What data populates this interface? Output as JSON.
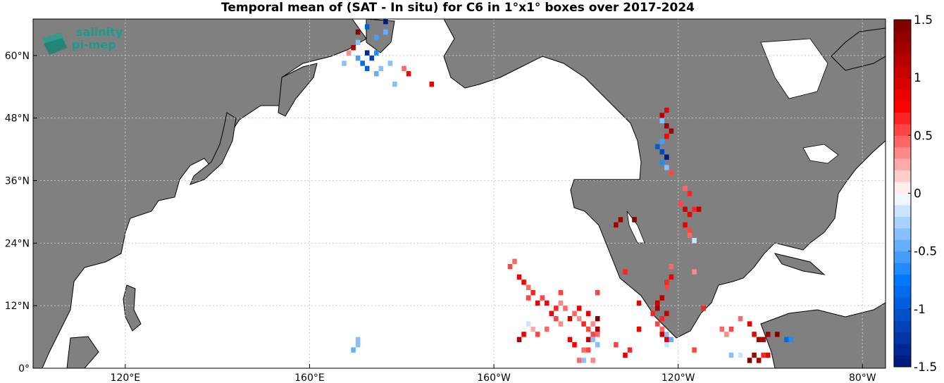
{
  "title": "Temporal mean of (SAT - In situ) for C6 in 1°x1° boxes over 2017-2024",
  "logo": {
    "line1": "salinity",
    "line2": "pi-mep"
  },
  "colors": {
    "land": "#808080",
    "ocean": "#ffffff",
    "grid": "#c8c8c8"
  },
  "chart_data": {
    "type": "heatmap",
    "title": "Temporal mean of (SAT - In situ) for C6 in 1°x1° boxes over 2017-2024",
    "projection": "equirectangular",
    "xlim_lon_east": [
      100,
      285
    ],
    "ylim_lat": [
      0,
      67
    ],
    "x_ticks": [
      {
        "lon": 120,
        "label": "120°E"
      },
      {
        "lon": 160,
        "label": "160°E"
      },
      {
        "lon": 200,
        "label": "160°W"
      },
      {
        "lon": 240,
        "label": "120°W"
      },
      {
        "lon": 280,
        "label": "80°W"
      }
    ],
    "y_ticks": [
      {
        "lat": 0,
        "label": "0°"
      },
      {
        "lat": 12,
        "label": "12°N"
      },
      {
        "lat": 24,
        "label": "24°N"
      },
      {
        "lat": 36,
        "label": "36°N"
      },
      {
        "lat": 48,
        "label": "48°N"
      },
      {
        "lat": 60,
        "label": "60°N"
      }
    ],
    "grid": true,
    "colorbar": {
      "range": [
        -1.5,
        1.5
      ],
      "ticks": [
        -1.5,
        -1,
        -0.5,
        0,
        0.5,
        1,
        1.5
      ],
      "tick_labels": [
        "-1.5",
        "-1",
        "-0.5",
        "0",
        "0.5",
        "1",
        "1.5"
      ],
      "levels": 30,
      "colormap": "blue-white-red"
    },
    "cells": [
      [
        170,
        64,
        1.5
      ],
      [
        176,
        66,
        -1.5
      ],
      [
        172,
        65,
        -1.0
      ],
      [
        174,
        63,
        -0.6
      ],
      [
        176,
        64,
        -0.5
      ],
      [
        170,
        62,
        -0.4
      ],
      [
        169,
        61,
        1.2
      ],
      [
        172,
        60,
        -1.4
      ],
      [
        173,
        59,
        -1.2
      ],
      [
        171,
        58,
        -0.8
      ],
      [
        170,
        59,
        -0.6
      ],
      [
        174,
        60,
        -0.7
      ],
      [
        172,
        57,
        -0.9
      ],
      [
        174,
        56,
        -0.5
      ],
      [
        168,
        60,
        0.3
      ],
      [
        167,
        58,
        -0.4
      ],
      [
        175,
        57,
        -0.3
      ],
      [
        177,
        58,
        -0.4
      ],
      [
        181,
        56,
        0.7
      ],
      [
        180,
        57,
        0.4
      ],
      [
        178,
        54,
        -0.3
      ],
      [
        186,
        54,
        0.9
      ],
      [
        237,
        49,
        0.8
      ],
      [
        236,
        48,
        1.1
      ],
      [
        236,
        47,
        -0.4
      ],
      [
        237,
        46,
        1.3
      ],
      [
        238,
        45,
        1.2
      ],
      [
        237,
        44,
        0.7
      ],
      [
        236,
        43,
        -0.6
      ],
      [
        235,
        42,
        -0.9
      ],
      [
        236,
        41,
        -1.2
      ],
      [
        237,
        40,
        -1.5
      ],
      [
        236,
        39,
        -0.7
      ],
      [
        237,
        38,
        -0.4
      ],
      [
        238,
        37,
        0.5
      ],
      [
        241,
        34,
        0.4
      ],
      [
        242,
        33,
        0.6
      ],
      [
        240,
        31,
        0.5
      ],
      [
        241,
        30,
        1.0
      ],
      [
        242,
        29,
        0.8
      ],
      [
        243,
        30,
        0.6
      ],
      [
        244,
        30,
        1.1
      ],
      [
        241,
        27,
        0.9
      ],
      [
        242,
        26,
        0.5
      ],
      [
        242,
        25,
        0.4
      ],
      [
        227,
        28,
        1.3
      ],
      [
        226,
        27,
        1.2
      ],
      [
        230,
        28,
        1.4
      ],
      [
        243,
        24,
        -0.2
      ],
      [
        204,
        20,
        0.4
      ],
      [
        203,
        19,
        0.5
      ],
      [
        205,
        17,
        0.9
      ],
      [
        206,
        16,
        0.7
      ],
      [
        207,
        15,
        0.4
      ],
      [
        208,
        14,
        0.6
      ],
      [
        207,
        13,
        0.5
      ],
      [
        209,
        12,
        0.8
      ],
      [
        210,
        13,
        0.5
      ],
      [
        211,
        12,
        0.7
      ],
      [
        213,
        11,
        0.6
      ],
      [
        214,
        12,
        0.3
      ],
      [
        215,
        11,
        0.4
      ],
      [
        212,
        10,
        0.8
      ],
      [
        213,
        9,
        0.5
      ],
      [
        214,
        8,
        0.3
      ],
      [
        216,
        9,
        1.0
      ],
      [
        217,
        10,
        0.4
      ],
      [
        218,
        9,
        0.3
      ],
      [
        219,
        8,
        0.6
      ],
      [
        220,
        7,
        0.5
      ],
      [
        221,
        8,
        0.3
      ],
      [
        222,
        7,
        1.2
      ],
      [
        221,
        6,
        0.5
      ],
      [
        220,
        5,
        1.0
      ],
      [
        222,
        6,
        0.4
      ],
      [
        208,
        7,
        0.2
      ],
      [
        207,
        8,
        -0.2
      ],
      [
        206,
        6,
        0.9
      ],
      [
        205,
        5,
        1.1
      ],
      [
        209,
        6,
        0.5
      ],
      [
        211,
        7,
        0.4
      ],
      [
        216,
        5,
        0.8
      ],
      [
        217,
        4,
        0.7
      ],
      [
        219,
        3,
        0.4
      ],
      [
        220,
        3,
        0.5
      ],
      [
        222,
        4,
        -0.4
      ],
      [
        221,
        5,
        -0.3
      ],
      [
        222,
        9,
        1.6
      ],
      [
        220,
        10,
        0.9
      ],
      [
        218,
        11,
        0.8
      ],
      [
        214,
        14,
        0.5
      ],
      [
        222,
        14,
        0.5
      ],
      [
        231,
        12,
        0.8
      ],
      [
        231,
        7,
        0.9
      ],
      [
        234,
        10,
        0.6
      ],
      [
        235,
        12,
        1.0
      ],
      [
        236,
        13,
        1.1
      ],
      [
        235,
        11,
        1.2
      ],
      [
        237,
        10,
        1.0
      ],
      [
        236,
        9,
        0.6
      ],
      [
        235,
        8,
        0.5
      ],
      [
        236,
        7,
        0.4
      ],
      [
        237,
        6,
        -0.3
      ],
      [
        237,
        5,
        0.8
      ],
      [
        236,
        6,
        1.0
      ],
      [
        238,
        5,
        -0.5
      ],
      [
        237,
        4,
        -0.2
      ],
      [
        238,
        17,
        0.8
      ],
      [
        237,
        16,
        0.6
      ],
      [
        237,
        15,
        0.5
      ],
      [
        238,
        19,
        0.4
      ],
      [
        228,
        18,
        0.6
      ],
      [
        228,
        2,
        0.9
      ],
      [
        226,
        4,
        0.5
      ],
      [
        229,
        3,
        0.6
      ],
      [
        243,
        18,
        0.3
      ],
      [
        245,
        11,
        0.6
      ],
      [
        249,
        7,
        0.4
      ],
      [
        250,
        6,
        0.3
      ],
      [
        251,
        7,
        0.5
      ],
      [
        253,
        9,
        0.4
      ],
      [
        255,
        8,
        0.8
      ],
      [
        256,
        6,
        0.9
      ],
      [
        257,
        5,
        1.2
      ],
      [
        258,
        5,
        1.1
      ],
      [
        259,
        6,
        1.3
      ],
      [
        261,
        6,
        1.4
      ],
      [
        263,
        5,
        -0.8
      ],
      [
        264,
        5,
        -0.7
      ],
      [
        256,
        2,
        1.3
      ],
      [
        255,
        1,
        1.4
      ],
      [
        257,
        1,
        1.2
      ],
      [
        258,
        2,
        0.6
      ],
      [
        259,
        2,
        0.9
      ],
      [
        251,
        2,
        -0.3
      ],
      [
        253,
        2,
        -0.2
      ],
      [
        243,
        3,
        0.5
      ],
      [
        221,
        1,
        0.3
      ],
      [
        219,
        1,
        -0.3
      ],
      [
        218,
        1,
        0.4
      ],
      [
        170,
        5,
        -0.4
      ],
      [
        170,
        4,
        -0.3
      ],
      [
        169,
        3,
        -0.5
      ]
    ]
  }
}
